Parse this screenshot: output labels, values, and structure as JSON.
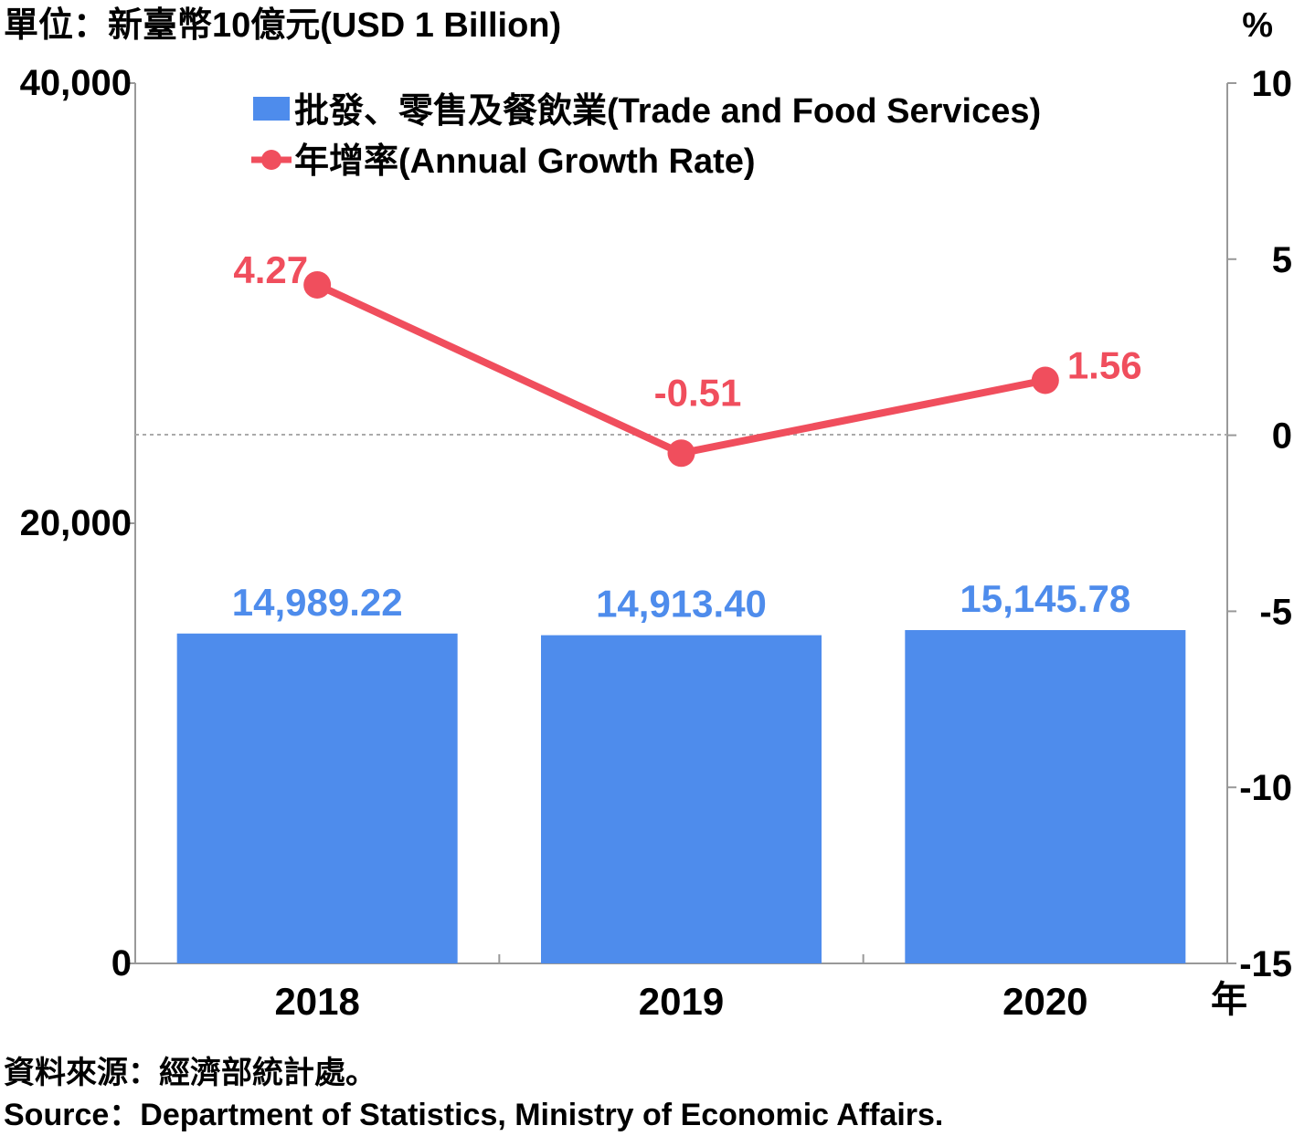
{
  "chart_data": {
    "type": "bar",
    "unit_label": "單位：新臺幣10億元(USD 1 Billion)",
    "right_unit": "%",
    "x_unit": "年",
    "categories": [
      "2018",
      "2019",
      "2020"
    ],
    "y_left": {
      "min": 0,
      "max": 40000,
      "ticks": [
        "0",
        "20,000",
        "40,000"
      ],
      "tick_values": [
        0,
        20000,
        40000
      ]
    },
    "y_right": {
      "min": -15,
      "max": 10,
      "ticks": [
        "-15",
        "-10",
        "-5",
        "0",
        "5",
        "10"
      ],
      "tick_values": [
        -15,
        -10,
        -5,
        0,
        5,
        10
      ]
    },
    "series": [
      {
        "name": "批發、零售及餐飲業(Trade and Food Services)",
        "kind": "bar",
        "axis": "left",
        "color": "#4e8cec",
        "values": [
          14989.22,
          14913.4,
          15145.78
        ],
        "labels": [
          "14,989.22",
          "14,913.40",
          "15,145.78"
        ]
      },
      {
        "name": "年增率(Annual Growth Rate)",
        "kind": "line",
        "axis": "right",
        "color": "#f04e5d",
        "values": [
          4.27,
          -0.51,
          1.56
        ],
        "labels": [
          "4.27",
          "-0.51",
          "1.56"
        ]
      }
    ],
    "zero_reference_line": true,
    "legend_position": "top-center",
    "grid": false
  },
  "source": {
    "zh": "資料來源：經濟部統計處。",
    "en": "Source：Department of Statistics, Ministry of Economic Affairs."
  }
}
